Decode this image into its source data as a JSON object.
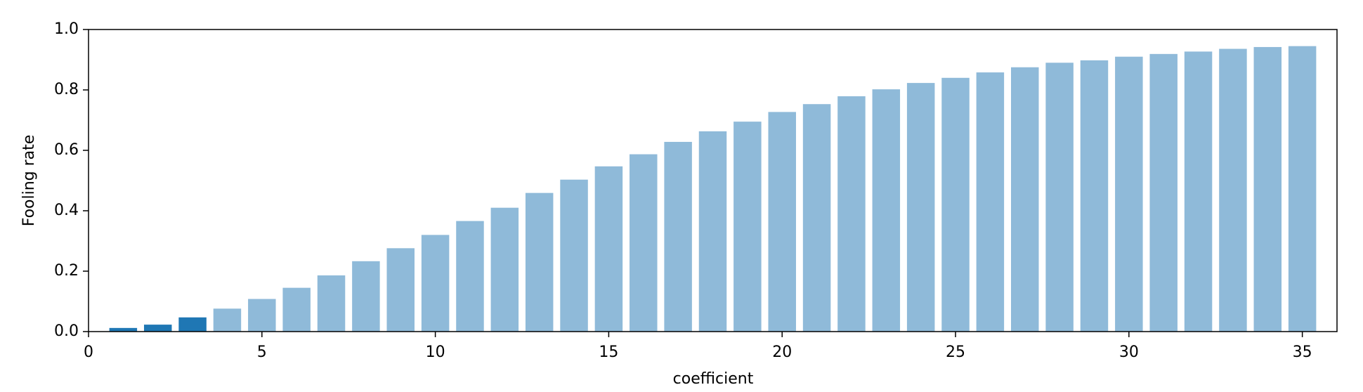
{
  "chart_data": {
    "type": "bar",
    "xlabel": "coefficient",
    "ylabel": "Fooling rate",
    "x": [
      1,
      2,
      3,
      4,
      5,
      6,
      7,
      8,
      9,
      10,
      11,
      12,
      13,
      14,
      15,
      16,
      17,
      18,
      19,
      20,
      21,
      22,
      23,
      24,
      25,
      26,
      27,
      28,
      29,
      30,
      31,
      32,
      33,
      34,
      35
    ],
    "values": [
      0.012,
      0.023,
      0.047,
      0.076,
      0.108,
      0.145,
      0.186,
      0.233,
      0.276,
      0.32,
      0.366,
      0.41,
      0.459,
      0.503,
      0.547,
      0.587,
      0.628,
      0.663,
      0.695,
      0.727,
      0.753,
      0.779,
      0.802,
      0.823,
      0.84,
      0.858,
      0.875,
      0.89,
      0.898,
      0.91,
      0.919,
      0.927,
      0.936,
      0.942,
      0.945
    ],
    "colors": [
      "#1f77b4",
      "#1f77b4",
      "#1f77b4",
      "#8fbad9",
      "#8fbad9",
      "#8fbad9",
      "#8fbad9",
      "#8fbad9",
      "#8fbad9",
      "#8fbad9",
      "#8fbad9",
      "#8fbad9",
      "#8fbad9",
      "#8fbad9",
      "#8fbad9",
      "#8fbad9",
      "#8fbad9",
      "#8fbad9",
      "#8fbad9",
      "#8fbad9",
      "#8fbad9",
      "#8fbad9",
      "#8fbad9",
      "#8fbad9",
      "#8fbad9",
      "#8fbad9",
      "#8fbad9",
      "#8fbad9",
      "#8fbad9",
      "#8fbad9",
      "#8fbad9",
      "#8fbad9",
      "#8fbad9",
      "#8fbad9",
      "#8fbad9"
    ],
    "bar_width": 0.8,
    "xlim": [
      0,
      36
    ],
    "xticks": [
      0,
      5,
      10,
      15,
      20,
      25,
      30,
      35
    ],
    "ylim": [
      0,
      1
    ],
    "yticks": [
      {
        "value": 0,
        "label": "0.0"
      },
      {
        "value": 0.2,
        "label": "0.2"
      },
      {
        "value": 0.4,
        "label": "0.4"
      },
      {
        "value": 0.6,
        "label": "0.6"
      },
      {
        "value": 0.8,
        "label": "0.8"
      },
      {
        "value": 1,
        "label": "1.0"
      }
    ],
    "grid": false
  }
}
